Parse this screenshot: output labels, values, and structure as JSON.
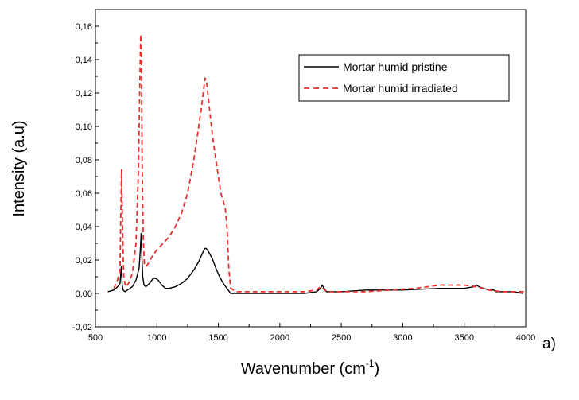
{
  "chart_data": {
    "type": "line",
    "xlabel": "Wavenumber (cm",
    "xlabel_superscript": "-1",
    "xlabel_suffix": ")",
    "ylabel": "Intensity (a.u)",
    "panel_label": "a)",
    "xlim": [
      500,
      4000
    ],
    "ylim": [
      -0.02,
      0.17
    ],
    "x_ticks": [
      "500",
      "1000",
      "1500",
      "2000",
      "2500",
      "3000",
      "3500",
      "4000"
    ],
    "y_ticks": [
      "-0,02",
      "0,00",
      "0,02",
      "0,04",
      "0,06",
      "0,08",
      "0,10",
      "0,12",
      "0,14",
      "0,16"
    ],
    "legend_position": "top-right",
    "grid": false,
    "series": [
      {
        "name": "Mortar humid pristine",
        "color": "#000000",
        "style": "solid",
        "x": [
          600,
          650,
          680,
          700,
          710,
          718,
          725,
          740,
          760,
          800,
          830,
          855,
          865,
          872,
          878,
          885,
          895,
          910,
          940,
          970,
          990,
          1010,
          1040,
          1070,
          1100,
          1150,
          1200,
          1250,
          1300,
          1340,
          1370,
          1390,
          1400,
          1420,
          1450,
          1480,
          1510,
          1540,
          1560,
          1580,
          1600,
          1650,
          1700,
          1800,
          2000,
          2200,
          2300,
          2330,
          2345,
          2360,
          2380,
          2500,
          2700,
          3000,
          3300,
          3500,
          3580,
          3600,
          3620,
          3700,
          3740,
          3760,
          3800,
          3900,
          3980
        ],
        "y": [
          0.001,
          0.002,
          0.004,
          0.006,
          0.016,
          0.005,
          0.002,
          0.001,
          0.002,
          0.004,
          0.008,
          0.015,
          0.026,
          0.036,
          0.022,
          0.01,
          0.005,
          0.004,
          0.006,
          0.009,
          0.009,
          0.008,
          0.005,
          0.003,
          0.003,
          0.004,
          0.006,
          0.009,
          0.014,
          0.019,
          0.024,
          0.027,
          0.027,
          0.025,
          0.021,
          0.015,
          0.01,
          0.006,
          0.004,
          0.002,
          0.0,
          0.0,
          0.0,
          0.0,
          0.0,
          0.0,
          0.001,
          0.003,
          0.005,
          0.003,
          0.001,
          0.001,
          0.002,
          0.002,
          0.003,
          0.003,
          0.004,
          0.005,
          0.004,
          0.002,
          0.002,
          0.001,
          0.001,
          0.001,
          0.0
        ]
      },
      {
        "name": "Mortar humid irradiated",
        "color": "#e8302e",
        "style": "dashed",
        "x": [
          650,
          680,
          700,
          712,
          720,
          730,
          745,
          770,
          800,
          830,
          850,
          860,
          868,
          874,
          880,
          888,
          898,
          910,
          930,
          960,
          1000,
          1050,
          1100,
          1150,
          1200,
          1250,
          1300,
          1330,
          1360,
          1380,
          1392,
          1405,
          1420,
          1440,
          1460,
          1480,
          1500,
          1520,
          1540,
          1555,
          1570,
          1585,
          1600,
          1650,
          1700,
          1800,
          2000,
          2200,
          2300,
          2330,
          2350,
          2380,
          2500,
          2700,
          2900,
          3100,
          3200,
          3300,
          3400,
          3500,
          3600,
          3700,
          3800,
          3900,
          3990
        ],
        "y": [
          0.003,
          0.008,
          0.015,
          0.074,
          0.04,
          0.01,
          0.004,
          0.006,
          0.012,
          0.03,
          0.075,
          0.12,
          0.155,
          0.14,
          0.08,
          0.035,
          0.018,
          0.016,
          0.018,
          0.022,
          0.026,
          0.03,
          0.034,
          0.04,
          0.048,
          0.06,
          0.08,
          0.095,
          0.11,
          0.122,
          0.129,
          0.126,
          0.116,
          0.102,
          0.09,
          0.08,
          0.07,
          0.06,
          0.055,
          0.052,
          0.04,
          0.015,
          0.003,
          0.001,
          0.001,
          0.001,
          0.001,
          0.001,
          0.002,
          0.004,
          0.003,
          0.001,
          0.001,
          0.001,
          0.002,
          0.003,
          0.004,
          0.005,
          0.005,
          0.005,
          0.004,
          0.002,
          0.001,
          0.001,
          0.001
        ]
      }
    ]
  }
}
